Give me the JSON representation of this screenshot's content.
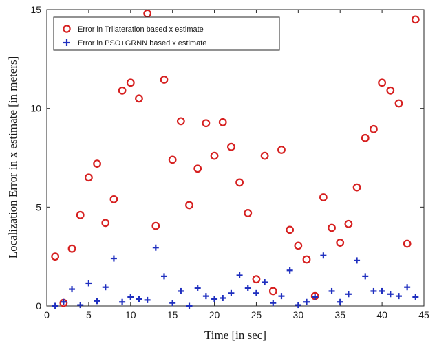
{
  "chart_data": {
    "type": "scatter",
    "title": "",
    "xlabel": "Time [in sec]",
    "ylabel": "Localization Error in x estimate [in meters]",
    "xlim": [
      0,
      45
    ],
    "ylim": [
      0,
      15
    ],
    "xticks": [
      "0",
      "5",
      "10",
      "15",
      "20",
      "25",
      "30",
      "35",
      "40",
      "45"
    ],
    "yticks": [
      "0",
      "5",
      "10",
      "15"
    ],
    "grid": false,
    "legend_position": "top-left",
    "series": [
      {
        "name": "Error in Trilateration based x estimate",
        "marker": "circle",
        "color": "#d62020",
        "x": [
          1,
          2,
          3,
          4,
          5,
          6,
          7,
          8,
          9,
          10,
          11,
          12,
          13,
          14,
          15,
          16,
          17,
          18,
          19,
          20,
          21,
          22,
          23,
          24,
          25,
          26,
          27,
          28,
          29,
          30,
          31,
          32,
          33,
          34,
          35,
          36,
          37,
          38,
          39,
          40,
          41,
          42,
          43,
          44
        ],
        "y": [
          2.5,
          0.15,
          2.9,
          4.6,
          6.5,
          7.2,
          4.2,
          5.4,
          10.9,
          11.3,
          10.5,
          14.8,
          4.05,
          11.45,
          7.4,
          9.35,
          5.1,
          6.95,
          9.25,
          7.6,
          9.3,
          8.05,
          6.25,
          4.7,
          1.35,
          7.6,
          0.75,
          7.9,
          3.85,
          3.05,
          2.35,
          0.5,
          5.5,
          3.95,
          3.2,
          4.15,
          6.0,
          8.5,
          8.95,
          11.3,
          10.9,
          10.25,
          3.15,
          14.5
        ]
      },
      {
        "name": "Error in PSO+GRNN based x estimate",
        "marker": "plus",
        "color": "#1f2fbf",
        "x": [
          1,
          2,
          3,
          4,
          5,
          6,
          7,
          8,
          9,
          10,
          11,
          12,
          13,
          14,
          15,
          16,
          17,
          18,
          19,
          20,
          21,
          22,
          23,
          24,
          25,
          26,
          27,
          28,
          29,
          30,
          31,
          32,
          33,
          34,
          35,
          36,
          37,
          38,
          39,
          40,
          41,
          42,
          43,
          44
        ],
        "y": [
          0.0,
          0.2,
          0.85,
          0.05,
          1.15,
          0.25,
          0.95,
          2.4,
          0.2,
          0.45,
          0.35,
          0.3,
          2.95,
          1.5,
          0.15,
          0.75,
          0.0,
          0.9,
          0.5,
          0.35,
          0.4,
          0.65,
          1.55,
          0.9,
          0.65,
          1.2,
          0.15,
          0.5,
          1.8,
          0.05,
          0.2,
          0.45,
          2.55,
          0.75,
          0.2,
          0.6,
          2.3,
          1.5,
          0.75,
          0.75,
          0.6,
          0.5,
          0.95,
          0.45
        ]
      }
    ]
  }
}
